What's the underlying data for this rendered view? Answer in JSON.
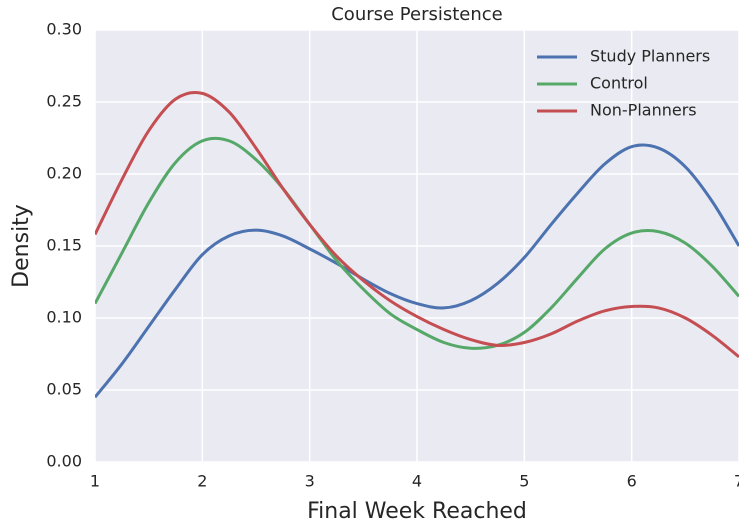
{
  "chart_data": {
    "type": "line",
    "title": "Course Persistence",
    "x_label": "Final Week Reached",
    "y_label": "Density",
    "x": [
      1,
      1.25,
      1.5,
      1.75,
      2,
      2.25,
      2.5,
      2.75,
      3,
      3.25,
      3.5,
      3.75,
      4,
      4.25,
      4.5,
      4.75,
      5,
      5.25,
      5.5,
      5.75,
      6,
      6.25,
      6.5,
      6.75,
      7
    ],
    "series": [
      {
        "name": "Study Planners",
        "color": "#4c72b0",
        "values": [
          0.045,
          0.068,
          0.094,
          0.12,
          0.144,
          0.157,
          0.161,
          0.157,
          0.148,
          0.138,
          0.127,
          0.117,
          0.11,
          0.107,
          0.112,
          0.124,
          0.142,
          0.165,
          0.187,
          0.207,
          0.219,
          0.218,
          0.205,
          0.181,
          0.15
        ]
      },
      {
        "name": "Control",
        "color": "#55a868",
        "values": [
          0.11,
          0.145,
          0.18,
          0.208,
          0.223,
          0.223,
          0.21,
          0.19,
          0.165,
          0.14,
          0.12,
          0.103,
          0.092,
          0.083,
          0.079,
          0.081,
          0.09,
          0.107,
          0.128,
          0.148,
          0.159,
          0.16,
          0.152,
          0.136,
          0.115
        ]
      },
      {
        "name": "Non-Planners",
        "color": "#c44e52",
        "values": [
          0.158,
          0.196,
          0.23,
          0.252,
          0.256,
          0.243,
          0.218,
          0.19,
          0.165,
          0.143,
          0.126,
          0.112,
          0.101,
          0.092,
          0.085,
          0.081,
          0.083,
          0.089,
          0.098,
          0.105,
          0.108,
          0.107,
          0.1,
          0.088,
          0.073
        ]
      }
    ],
    "xlim": [
      1,
      7
    ],
    "xticks": [
      1,
      2,
      3,
      4,
      5,
      6,
      7
    ],
    "ylim": [
      0,
      0.3
    ],
    "yticks": [
      {
        "value": 0,
        "label": "0.00"
      },
      {
        "value": 0.05,
        "label": "0.05"
      },
      {
        "value": 0.1,
        "label": "0.10"
      },
      {
        "value": 0.15,
        "label": "0.15"
      },
      {
        "value": 0.2,
        "label": "0.20"
      },
      {
        "value": 0.25,
        "label": "0.25"
      },
      {
        "value": 0.3,
        "label": "0.30"
      }
    ],
    "grid": true,
    "legend": "upper right"
  }
}
